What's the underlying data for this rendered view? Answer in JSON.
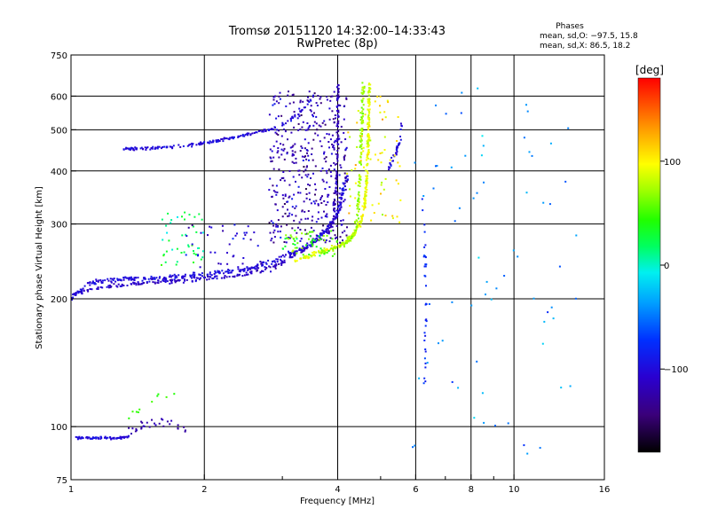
{
  "chart_data": {
    "type": "scatter",
    "title": "Tromsø 20151120 14:32:00–14:33:43",
    "subtitle": "RwPretec (8p)",
    "xlabel": "Frequency [MHz]",
    "ylabel": "Stationary phase Virtual Height [km]",
    "x_scale": "log",
    "y_scale": "log",
    "xlim": [
      1,
      16
    ],
    "ylim": [
      75,
      750
    ],
    "x_ticks": [
      1,
      2,
      4,
      6,
      8,
      10,
      16
    ],
    "x_tick_labels": [
      "1",
      "2",
      "4",
      "6",
      "8",
      "10",
      "16"
    ],
    "x_minor_ticks": [
      3,
      5,
      7,
      9
    ],
    "y_ticks": [
      75,
      100,
      200,
      300,
      400,
      500,
      600,
      750
    ],
    "y_tick_labels": [
      "75",
      "100",
      "200",
      "300",
      "400",
      "500",
      "600",
      "750"
    ],
    "grid": true,
    "stats": {
      "title": "Phases",
      "line_o": "mean, sd,O: −97.5, 15.8",
      "line_x": "mean, sd,X:  86.5, 18.2"
    },
    "colorbar": {
      "label": "[deg]",
      "range": [
        -180,
        180
      ],
      "ticks": [
        100,
        0,
        -100
      ],
      "tick_labels": [
        "100",
        "0",
        "−100"
      ]
    },
    "traces": [
      {
        "kind": "line",
        "phase": -100,
        "pts": [
          [
            1.0,
            94
          ],
          [
            1.05,
            94
          ],
          [
            1.1,
            94
          ],
          [
            1.2,
            94
          ],
          [
            1.3,
            94
          ],
          [
            1.35,
            95
          ]
        ],
        "jitter": 0.01,
        "n": 70
      },
      {
        "kind": "line",
        "phase": -125,
        "pts": [
          [
            1.35,
            96
          ],
          [
            1.45,
            100
          ],
          [
            1.6,
            103
          ],
          [
            1.75,
            100
          ],
          [
            1.85,
            99
          ]
        ],
        "jitter": 0.04,
        "n": 30
      },
      {
        "kind": "line",
        "phase": 40,
        "pts": [
          [
            1.35,
            105
          ],
          [
            1.5,
            110
          ],
          [
            1.6,
            120
          ],
          [
            1.75,
            125
          ]
        ],
        "jitter": 0.06,
        "n": 10
      },
      {
        "kind": "line",
        "phase": -100,
        "pts": [
          [
            1.0,
            200
          ],
          [
            1.1,
            218
          ],
          [
            1.3,
            222
          ],
          [
            1.6,
            224
          ],
          [
            2.0,
            228
          ],
          [
            2.3,
            232
          ],
          [
            2.6,
            238
          ],
          [
            2.9,
            246
          ],
          [
            3.2,
            258
          ],
          [
            3.5,
            272
          ],
          [
            3.8,
            292
          ],
          [
            4.0,
            318
          ],
          [
            4.1,
            352
          ],
          [
            4.2,
            392
          ]
        ],
        "jitter": 0.02,
        "n": 340
      },
      {
        "kind": "line",
        "phase": -110,
        "pts": [
          [
            1.0,
            205
          ],
          [
            1.2,
            213
          ],
          [
            1.5,
            218
          ],
          [
            1.9,
            222
          ],
          [
            2.3,
            226
          ],
          [
            2.7,
            234
          ],
          [
            3.0,
            244
          ],
          [
            3.3,
            258
          ],
          [
            3.6,
            274
          ],
          [
            3.9,
            300
          ],
          [
            4.1,
            335
          ]
        ],
        "jitter": 0.02,
        "n": 220
      },
      {
        "kind": "line",
        "phase": 90,
        "pts": [
          [
            3.2,
            245
          ],
          [
            3.5,
            254
          ],
          [
            3.8,
            262
          ],
          [
            4.1,
            268
          ],
          [
            4.3,
            280
          ],
          [
            4.5,
            300
          ],
          [
            4.6,
            330
          ],
          [
            4.65,
            380
          ],
          [
            4.68,
            450
          ],
          [
            4.7,
            530
          ],
          [
            4.72,
            640
          ]
        ],
        "jitter": 0.015,
        "n": 260
      },
      {
        "kind": "line",
        "phase": 70,
        "pts": [
          [
            3.6,
            255
          ],
          [
            3.9,
            262
          ],
          [
            4.2,
            272
          ],
          [
            4.4,
            290
          ],
          [
            4.45,
            330
          ],
          [
            4.5,
            400
          ],
          [
            4.52,
            480
          ],
          [
            4.55,
            560
          ],
          [
            4.58,
            640
          ]
        ],
        "jitter": 0.02,
        "n": 160
      },
      {
        "kind": "line",
        "phase": -100,
        "pts": [
          [
            1.3,
            450
          ],
          [
            1.5,
            452
          ],
          [
            1.8,
            458
          ],
          [
            2.0,
            465
          ],
          [
            2.3,
            478
          ],
          [
            2.6,
            492
          ],
          [
            2.9,
            505
          ],
          [
            3.1,
            525
          ],
          [
            3.3,
            552
          ],
          [
            3.45,
            580
          ],
          [
            3.55,
            615
          ]
        ],
        "jitter": 0.012,
        "n": 170
      },
      {
        "kind": "line",
        "phase": -115,
        "pts": [
          [
            3.9,
            300
          ],
          [
            3.95,
            350
          ],
          [
            4.0,
            420
          ],
          [
            4.0,
            500
          ],
          [
            4.0,
            580
          ],
          [
            4.02,
            640
          ]
        ],
        "jitter": 0.015,
        "n": 90
      },
      {
        "kind": "line",
        "phase": -100,
        "pts": [
          [
            5.2,
            400
          ],
          [
            5.4,
            440
          ],
          [
            5.55,
            480
          ],
          [
            5.6,
            530
          ]
        ],
        "jitter": 0.02,
        "n": 35
      },
      {
        "kind": "line",
        "phase": -80,
        "pts": [
          [
            6.2,
            355
          ],
          [
            6.25,
            300
          ],
          [
            6.3,
            250
          ],
          [
            6.35,
            200
          ],
          [
            6.3,
            160
          ],
          [
            6.3,
            125
          ]
        ],
        "jitter": 0.015,
        "n": 35
      },
      {
        "kind": "cloud",
        "phase": -120,
        "x": [
          2.8,
          4.2
        ],
        "y": [
          270,
          620
        ],
        "n": 420
      },
      {
        "kind": "cloud",
        "phase": 20,
        "x": [
          1.6,
          2.0
        ],
        "y": [
          240,
          320
        ],
        "n": 45
      },
      {
        "kind": "cloud",
        "phase": 100,
        "x": [
          4.2,
          5.6
        ],
        "y": [
          300,
          600
        ],
        "n": 70
      },
      {
        "kind": "cloud",
        "phase": -110,
        "x": [
          1.8,
          3.0
        ],
        "y": [
          230,
          300
        ],
        "n": 50
      },
      {
        "kind": "cloud",
        "phase": 50,
        "x": [
          3.0,
          4.0
        ],
        "y": [
          250,
          290
        ],
        "n": 60
      },
      {
        "kind": "cloud",
        "phase": -40,
        "x": [
          5.8,
          14.0
        ],
        "y": [
          85,
          640
        ],
        "n": 70
      }
    ]
  }
}
